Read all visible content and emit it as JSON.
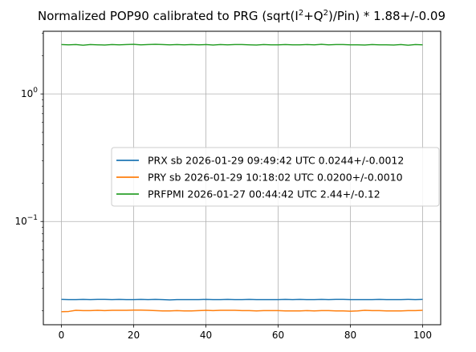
{
  "chart_data": {
    "type": "line",
    "title_prefix": "Normalized POP90 calibrated to PRG (sqrt(I",
    "title_sup1": "2",
    "title_mid": "+Q",
    "title_sup2": "2",
    "title_suffix": ")/Pin) * 1.88+/-0.09",
    "xlabel": "",
    "ylabel": "",
    "x_scale": "linear",
    "y_scale": "log",
    "xlim": [
      -5,
      105
    ],
    "ylim": [
      0.0155,
      3.1
    ],
    "grid": true,
    "legend_location": "center-right",
    "x_ticks": [
      0,
      20,
      40,
      60,
      80,
      100
    ],
    "x_tick_labels": [
      "0",
      "20",
      "40",
      "60",
      "80",
      "100"
    ],
    "y_major_ticks": [
      0.1,
      1
    ],
    "y_tick_labels": [
      {
        "base": "10",
        "exp": "−1"
      },
      {
        "base": "10",
        "exp": "0"
      }
    ],
    "x": [
      0,
      2,
      4,
      6,
      8,
      10,
      12,
      14,
      16,
      18,
      20,
      22,
      24,
      26,
      28,
      30,
      32,
      34,
      36,
      38,
      40,
      42,
      44,
      46,
      48,
      50,
      52,
      54,
      56,
      58,
      60,
      62,
      64,
      66,
      68,
      70,
      72,
      74,
      76,
      78,
      80,
      82,
      84,
      86,
      88,
      90,
      92,
      94,
      96,
      98,
      100
    ],
    "series": [
      {
        "name": "PRX sb 2026-01-29 09:49:42 UTC 0.0244+/-0.0012",
        "color": "#1f77b4",
        "values": [
          0.0245,
          0.0244,
          0.0244,
          0.0245,
          0.0244,
          0.0245,
          0.0245,
          0.0244,
          0.0245,
          0.0244,
          0.0244,
          0.0245,
          0.0244,
          0.0245,
          0.0244,
          0.0243,
          0.0244,
          0.0244,
          0.0244,
          0.0244,
          0.0245,
          0.0244,
          0.0244,
          0.0245,
          0.0244,
          0.0244,
          0.0245,
          0.0244,
          0.0244,
          0.0244,
          0.0244,
          0.0245,
          0.0244,
          0.0245,
          0.0244,
          0.0244,
          0.0245,
          0.0244,
          0.0245,
          0.0245,
          0.0244,
          0.0244,
          0.0244,
          0.0244,
          0.0245,
          0.0244,
          0.0244,
          0.0244,
          0.0245,
          0.0244,
          0.0245
        ]
      },
      {
        "name": "PRY sb 2026-01-29 10:18:02 UTC 0.0200+/-0.0010",
        "color": "#ff7f0e",
        "values": [
          0.0196,
          0.0197,
          0.0201,
          0.02,
          0.02,
          0.0201,
          0.02,
          0.0201,
          0.0201,
          0.0201,
          0.0202,
          0.0202,
          0.0201,
          0.02,
          0.0199,
          0.0199,
          0.02,
          0.0199,
          0.0199,
          0.02,
          0.0201,
          0.02,
          0.0201,
          0.0201,
          0.0201,
          0.02,
          0.02,
          0.0199,
          0.02,
          0.02,
          0.02,
          0.0199,
          0.0199,
          0.0199,
          0.02,
          0.0199,
          0.02,
          0.02,
          0.0199,
          0.0199,
          0.0198,
          0.0199,
          0.0201,
          0.02,
          0.02,
          0.0199,
          0.0199,
          0.0199,
          0.02,
          0.02,
          0.0201
        ]
      },
      {
        "name": "PRFPMI 2026-01-27 00:44:42 UTC 2.44+/-0.12",
        "color": "#2ca02c",
        "values": [
          2.44,
          2.43,
          2.44,
          2.41,
          2.44,
          2.43,
          2.42,
          2.44,
          2.43,
          2.44,
          2.45,
          2.43,
          2.44,
          2.45,
          2.44,
          2.43,
          2.44,
          2.43,
          2.44,
          2.43,
          2.44,
          2.42,
          2.44,
          2.43,
          2.44,
          2.44,
          2.43,
          2.42,
          2.44,
          2.43,
          2.43,
          2.44,
          2.43,
          2.43,
          2.44,
          2.43,
          2.45,
          2.43,
          2.44,
          2.44,
          2.43,
          2.43,
          2.42,
          2.44,
          2.43,
          2.43,
          2.42,
          2.44,
          2.41,
          2.44,
          2.43
        ]
      }
    ]
  }
}
